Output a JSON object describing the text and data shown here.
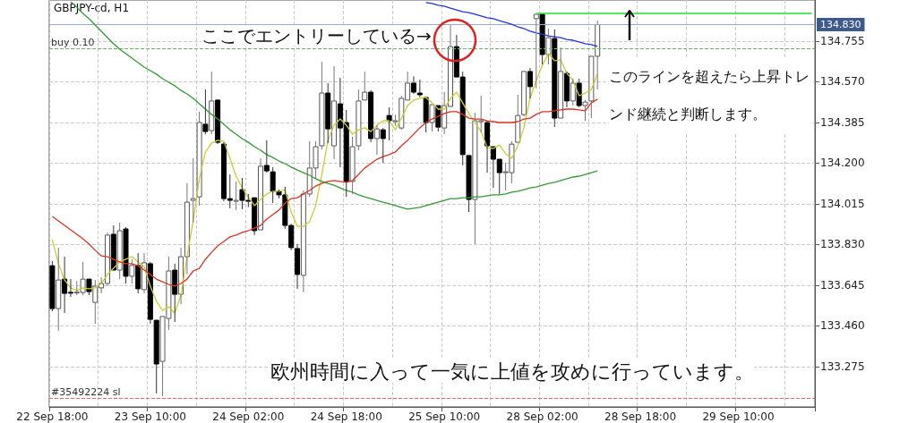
{
  "chart_data": {
    "type": "candlestick",
    "title": "GBPJPY-cd, H1",
    "categories": [
      "22 Sep 18:00",
      null,
      null,
      null,
      null,
      null,
      null,
      null,
      null,
      null,
      null,
      null,
      null,
      null,
      null,
      null,
      "23 Sep 10:00",
      null,
      null,
      null,
      null,
      null,
      null,
      null,
      null,
      null,
      null,
      null,
      null,
      null,
      null,
      null,
      "24 Sep 02:00",
      null,
      null,
      null,
      null,
      null,
      null,
      null,
      null,
      null,
      null,
      null,
      null,
      null,
      null,
      null,
      "24 Sep 18:00",
      null,
      null,
      null,
      null,
      null,
      null,
      null,
      null,
      null,
      null,
      null,
      null,
      null,
      null,
      null,
      "25 Sep 10:00",
      null,
      null,
      null,
      null,
      null,
      null,
      null,
      null,
      null,
      null,
      null,
      null,
      null,
      null,
      null,
      "28 Sep 02:00",
      null,
      null,
      null,
      null,
      null,
      null,
      null,
      null,
      null,
      null,
      null,
      null,
      null,
      null,
      null,
      "28 Sep 18:00",
      null,
      null,
      null,
      null,
      null,
      null,
      null,
      null,
      null,
      null,
      null,
      null,
      null,
      null,
      null,
      "29 Sep 10:00",
      null,
      null,
      null,
      null,
      null,
      null,
      null,
      null,
      null,
      null,
      null,
      null
    ],
    "ohlc": [
      [
        133.734,
        133.755,
        133.527,
        133.539
      ],
      [
        133.539,
        133.816,
        133.438,
        133.669
      ],
      [
        133.673,
        133.775,
        133.519,
        133.608
      ],
      [
        133.613,
        133.673,
        133.592,
        133.61
      ],
      [
        133.612,
        133.665,
        133.6,
        133.614
      ],
      [
        133.612,
        133.751,
        133.6,
        133.673
      ],
      [
        133.673,
        133.678,
        133.6,
        133.616
      ],
      [
        133.567,
        133.669,
        133.47,
        133.641
      ],
      [
        133.633,
        133.682,
        133.608,
        133.653
      ],
      [
        133.653,
        133.885,
        133.641,
        133.873
      ],
      [
        133.877,
        133.917,
        133.71,
        133.714
      ],
      [
        133.714,
        133.93,
        133.673,
        133.893
      ],
      [
        133.901,
        133.909,
        133.653,
        133.686
      ],
      [
        133.686,
        133.763,
        133.653,
        133.735
      ],
      [
        133.735,
        133.791,
        133.608,
        133.629
      ],
      [
        133.625,
        133.791,
        133.608,
        133.747
      ],
      [
        133.743,
        133.751,
        133.47,
        133.49
      ],
      [
        133.486,
        133.49,
        133.153,
        133.287
      ],
      [
        133.299,
        133.507,
        133.141,
        133.503
      ],
      [
        133.494,
        133.775,
        133.442,
        133.71
      ],
      [
        133.714,
        133.743,
        133.478,
        133.604
      ],
      [
        133.604,
        133.816,
        133.559,
        133.775
      ],
      [
        133.775,
        134.109,
        133.694,
        134.023
      ],
      [
        134.031,
        134.222,
        133.93,
        134.039
      ],
      [
        134.047,
        134.434,
        134.007,
        134.385
      ],
      [
        134.377,
        134.535,
        134.332,
        134.344
      ],
      [
        134.348,
        134.617,
        134.332,
        134.483
      ],
      [
        134.487,
        134.491,
        134.287,
        134.295
      ],
      [
        134.287,
        134.295,
        134.027,
        134.039
      ],
      [
        134.039,
        134.149,
        133.995,
        134.031
      ],
      [
        134.031,
        134.117,
        133.987,
        134.031
      ],
      [
        134.08,
        134.133,
        133.991,
        134.031
      ],
      [
        134.031,
        134.06,
        134.0,
        134.027
      ],
      [
        134.043,
        134.047,
        133.873,
        133.893
      ],
      [
        133.897,
        134.222,
        133.893,
        134.186
      ],
      [
        134.19,
        134.304,
        134.157,
        134.165
      ],
      [
        134.161,
        134.182,
        134.019,
        134.072
      ],
      [
        134.072,
        134.08,
        134.04,
        134.056
      ],
      [
        134.056,
        134.093,
        133.901,
        133.917
      ],
      [
        133.917,
        133.925,
        133.804,
        133.816
      ],
      [
        133.812,
        133.832,
        133.629,
        133.694
      ],
      [
        133.69,
        134.076,
        133.613,
        134.06
      ],
      [
        134.06,
        134.3,
        134.047,
        134.178
      ],
      [
        134.178,
        134.3,
        134.129,
        134.275
      ],
      [
        134.279,
        134.661,
        134.263,
        134.519
      ],
      [
        134.519,
        134.564,
        134.291,
        134.356
      ],
      [
        134.279,
        134.641,
        134.218,
        134.483
      ],
      [
        134.47,
        134.588,
        134.182,
        134.36
      ],
      [
        134.385,
        134.442,
        134.047,
        134.117
      ],
      [
        134.117,
        134.32,
        134.06,
        134.275
      ],
      [
        134.279,
        134.535,
        134.259,
        134.483
      ],
      [
        134.487,
        134.617,
        134.483,
        134.523
      ],
      [
        134.523,
        134.531,
        134.296,
        134.312
      ],
      [
        134.312,
        134.373,
        134.238,
        134.356
      ],
      [
        134.352,
        134.36,
        134.202,
        134.312
      ],
      [
        134.417,
        134.454,
        134.304,
        134.393
      ],
      [
        134.393,
        134.42,
        134.37,
        134.393
      ],
      [
        134.36,
        134.507,
        134.352,
        134.495
      ],
      [
        134.487,
        134.617,
        134.483,
        134.564
      ],
      [
        134.564,
        134.595,
        134.515,
        134.523
      ],
      [
        134.519,
        134.58,
        134.5,
        134.511
      ],
      [
        134.499,
        134.503,
        134.34,
        134.385
      ],
      [
        134.385,
        134.466,
        134.344,
        134.466
      ],
      [
        134.462,
        134.466,
        134.344,
        134.364
      ],
      [
        134.36,
        134.523,
        134.332,
        134.462
      ],
      [
        134.458,
        134.828,
        134.454,
        134.73
      ],
      [
        134.73,
        134.783,
        134.588,
        134.592
      ],
      [
        134.592,
        134.617,
        134.19,
        134.239
      ],
      [
        134.235,
        134.239,
        133.978,
        134.035
      ],
      [
        134.035,
        134.43,
        133.832,
        134.393
      ],
      [
        134.393,
        134.507,
        134.34,
        134.393
      ],
      [
        134.385,
        134.393,
        134.157,
        134.279
      ],
      [
        134.275,
        134.279,
        134.088,
        134.218
      ],
      [
        134.218,
        134.222,
        134.06,
        134.157
      ],
      [
        134.161,
        134.202,
        134.076,
        134.161
      ],
      [
        134.157,
        134.3,
        134.109,
        134.287
      ],
      [
        134.295,
        134.511,
        134.291,
        134.417
      ],
      [
        134.421,
        134.617,
        134.413,
        134.617
      ],
      [
        134.617,
        134.633,
        134.495,
        134.548
      ],
      [
        134.857,
        134.881,
        134.54,
        134.877
      ],
      [
        134.877,
        134.881,
        134.649,
        134.694
      ],
      [
        134.694,
        134.812,
        134.649,
        134.771
      ],
      [
        134.767,
        134.808,
        134.365,
        134.405
      ],
      [
        134.405,
        134.726,
        134.401,
        134.617
      ],
      [
        134.608,
        134.617,
        134.454,
        134.483
      ],
      [
        134.483,
        134.584,
        134.462,
        134.564
      ],
      [
        134.564,
        134.584,
        134.454,
        134.462
      ],
      [
        134.462,
        134.487,
        134.393,
        134.478
      ],
      [
        134.483,
        134.69,
        134.405,
        134.686
      ],
      [
        134.686,
        134.848,
        134.535,
        134.83
      ],
      null,
      null,
      null,
      null,
      null,
      null,
      null,
      null,
      null,
      null,
      null,
      null,
      null,
      null,
      null,
      null,
      null,
      null,
      null,
      null,
      null,
      null,
      null,
      null,
      null,
      null,
      null,
      null,
      null,
      null,
      null,
      null,
      null,
      null,
      null
    ],
    "series": [
      {
        "type": "line",
        "color": "#cccc33",
        "values": [
          133.852,
          133.743,
          133.669,
          133.633,
          133.621,
          133.633,
          133.629,
          133.633,
          133.653,
          133.694,
          133.722,
          133.751,
          133.763,
          133.775,
          133.751,
          133.73,
          133.641,
          133.572,
          133.531,
          133.547,
          133.519,
          133.6,
          133.775,
          133.938,
          134.129,
          134.251,
          134.291,
          134.304,
          134.3,
          134.222,
          134.141,
          134.088,
          134.047,
          134.007,
          134.035,
          134.06,
          134.072,
          134.072,
          134.08,
          133.978,
          133.913,
          133.913,
          133.934,
          134.007,
          134.149,
          134.304,
          134.373,
          134.401,
          134.373,
          134.332,
          134.352,
          134.361,
          134.344,
          134.373,
          134.393,
          134.393,
          134.352,
          134.405,
          134.462,
          134.487,
          134.495,
          134.499,
          134.474,
          134.446,
          134.446,
          134.495,
          134.523,
          134.474,
          134.426,
          134.385,
          134.344,
          134.271,
          134.267,
          134.283,
          134.243,
          134.222,
          134.279,
          134.361,
          134.495,
          134.576,
          134.645,
          134.698,
          134.666,
          134.67,
          134.609,
          134.576,
          134.507,
          134.519,
          134.535,
          134.605,
          null,
          null,
          null,
          null,
          null,
          null,
          null,
          null,
          null,
          null,
          null,
          null,
          null,
          null,
          null,
          null,
          null,
          null,
          null,
          null,
          null,
          null,
          null,
          null,
          null,
          null,
          null,
          null,
          null,
          null,
          null,
          null,
          null,
          null,
          null
        ]
      },
      {
        "type": "line",
        "color": "#dd3322",
        "values": [
          133.958,
          133.938,
          133.917,
          133.897,
          133.877,
          133.856,
          133.832,
          133.804,
          133.779,
          133.775,
          133.763,
          133.751,
          133.743,
          133.743,
          133.734,
          133.714,
          133.694,
          133.673,
          133.661,
          133.649,
          133.641,
          133.653,
          133.673,
          133.71,
          133.722,
          133.763,
          133.795,
          133.824,
          133.844,
          133.865,
          133.873,
          133.885,
          133.893,
          133.905,
          133.917,
          133.946,
          133.966,
          133.987,
          134.019,
          134.039,
          134.043,
          134.06,
          134.076,
          134.096,
          134.108,
          134.117,
          134.121,
          134.117,
          134.113,
          134.121,
          134.149,
          134.178,
          134.198,
          134.218,
          134.23,
          134.239,
          134.251,
          134.279,
          134.304,
          134.332,
          134.361,
          134.385,
          134.401,
          134.413,
          134.426,
          134.434,
          134.434,
          134.422,
          134.405,
          134.401,
          134.401,
          134.393,
          134.389,
          134.385,
          134.385,
          134.385,
          134.389,
          134.401,
          134.405,
          134.422,
          134.434,
          134.434,
          134.438,
          134.442,
          134.446,
          134.446,
          134.442,
          134.438,
          134.474,
          134.491,
          null,
          null,
          null,
          null,
          null,
          null,
          null,
          null,
          null,
          null,
          null,
          null,
          null,
          null,
          null,
          null,
          null,
          null,
          null,
          null,
          null,
          null,
          null,
          null,
          null,
          null,
          null,
          null,
          null,
          null,
          null,
          null,
          null,
          null,
          null
        ]
      },
      {
        "type": "line",
        "color": "#339933",
        "values": [
          null,
          null,
          null,
          134.934,
          134.909,
          134.881,
          134.857,
          134.828,
          134.8,
          134.771,
          134.743,
          134.718,
          134.698,
          134.678,
          134.657,
          134.637,
          134.621,
          134.605,
          134.584,
          134.568,
          134.552,
          134.531,
          134.515,
          134.495,
          134.47,
          134.446,
          134.422,
          134.401,
          134.377,
          134.352,
          134.332,
          134.312,
          134.295,
          134.275,
          134.259,
          134.239,
          134.226,
          134.21,
          134.198,
          134.182,
          134.169,
          134.157,
          134.145,
          134.129,
          134.117,
          134.108,
          134.1,
          134.088,
          134.076,
          134.068,
          134.056,
          134.047,
          134.039,
          134.031,
          134.023,
          134.015,
          134.007,
          133.999,
          133.991,
          133.995,
          133.999,
          134.007,
          134.015,
          134.023,
          134.031,
          134.039,
          134.039,
          134.043,
          134.043,
          134.047,
          134.047,
          134.052,
          134.056,
          134.056,
          134.06,
          134.068,
          134.072,
          134.08,
          134.088,
          134.092,
          134.1,
          134.108,
          134.113,
          134.121,
          134.129,
          134.137,
          134.141,
          134.149,
          134.157,
          134.165,
          null,
          null,
          null,
          null,
          null,
          null,
          null,
          null,
          null,
          null,
          null,
          null,
          null,
          null,
          null,
          null,
          null,
          null,
          null,
          null,
          null,
          null,
          null,
          null,
          null,
          null,
          null,
          null,
          null,
          null,
          null,
          null,
          null,
          null,
          null
        ]
      },
      {
        "type": "line",
        "color": "#2233dd",
        "values": [
          null,
          null,
          null,
          null,
          null,
          null,
          null,
          null,
          null,
          null,
          null,
          null,
          null,
          null,
          null,
          null,
          null,
          null,
          null,
          null,
          null,
          null,
          null,
          null,
          null,
          null,
          null,
          null,
          null,
          null,
          null,
          null,
          null,
          null,
          null,
          null,
          null,
          null,
          null,
          null,
          null,
          null,
          null,
          null,
          null,
          null,
          null,
          null,
          null,
          null,
          null,
          null,
          null,
          null,
          null,
          null,
          null,
          null,
          null,
          null,
          null,
          134.93,
          134.926,
          134.918,
          134.914,
          134.905,
          134.897,
          134.889,
          134.885,
          134.877,
          134.869,
          134.861,
          134.857,
          134.848,
          134.84,
          134.832,
          134.82,
          134.812,
          134.8,
          134.792,
          134.787,
          134.779,
          134.775,
          134.771,
          134.763,
          134.759,
          134.751,
          134.743,
          134.739,
          134.731,
          null,
          null,
          null,
          null,
          null,
          null,
          null,
          null,
          null,
          null,
          null,
          null,
          null,
          null,
          null,
          null,
          null,
          null,
          null,
          null,
          null,
          null,
          null,
          null,
          null,
          null,
          null,
          null,
          null,
          null,
          null,
          null,
          null,
          null,
          null
        ]
      },
      {
        "type": "line",
        "color": "#22dd33",
        "values": [
          null,
          null,
          null,
          null,
          null,
          null,
          null,
          null,
          null,
          null,
          null,
          null,
          null,
          null,
          null,
          null,
          null,
          null,
          null,
          null,
          null,
          null,
          null,
          null,
          null,
          null,
          null,
          null,
          null,
          null,
          null,
          null,
          null,
          null,
          null,
          null,
          null,
          null,
          null,
          null,
          null,
          null,
          null,
          null,
          null,
          null,
          null,
          null,
          null,
          null,
          null,
          null,
          null,
          null,
          null,
          null,
          null,
          null,
          null,
          null,
          null,
          null,
          null,
          null,
          null,
          null,
          null,
          null,
          null,
          null,
          null,
          null,
          null,
          null,
          null,
          null,
          null,
          null,
          null,
          134.881,
          134.881,
          134.881,
          134.881,
          134.881,
          134.881,
          134.881,
          134.881,
          134.881,
          134.881,
          134.881,
          134.881,
          134.881,
          134.881,
          134.881,
          134.881,
          134.881,
          134.881,
          134.881,
          134.881,
          134.881,
          134.881,
          134.881,
          134.881,
          134.881,
          134.881,
          134.881,
          134.881,
          134.881,
          134.881,
          134.881,
          134.881,
          134.881,
          134.881,
          134.881,
          134.881,
          134.881,
          134.881,
          134.881,
          134.881,
          134.881,
          134.881,
          134.881,
          134.881,
          134.881,
          134.881
        ]
      }
    ],
    "ref_lines": [
      {
        "axis": "y",
        "value": 134.83,
        "label": "134.830",
        "color": "#9aaacc",
        "line_style": "solid"
      },
      {
        "axis": "y",
        "value": 134.722,
        "label": "buy 0.10",
        "color": "#66bb66",
        "line_style": "dashed"
      },
      {
        "axis": "y",
        "value": 133.129,
        "label": "#35492224 sl",
        "color": "#ee6655",
        "line_style": "dashed"
      }
    ],
    "ylim": [
      133.092,
      134.942
    ],
    "yticks": [
      133.275,
      {
        "value": 133.46,
        "label": "133.460"
      },
      133.645,
      {
        "value": 133.83,
        "label": "133.830"
      },
      134.015,
      {
        "value": 134.2,
        "label": "134.200"
      },
      134.385,
      {
        "value": 134.57,
        "label": "134.570"
      },
      134.755
    ],
    "grid": true,
    "marker": "none",
    "annotations": [
      "ここでエントリーしている→",
      "このラインを超えたら上昇トレンド継続と判断します。",
      "欧州時間に入って一気に上値を攻めに行っています。"
    ]
  }
}
